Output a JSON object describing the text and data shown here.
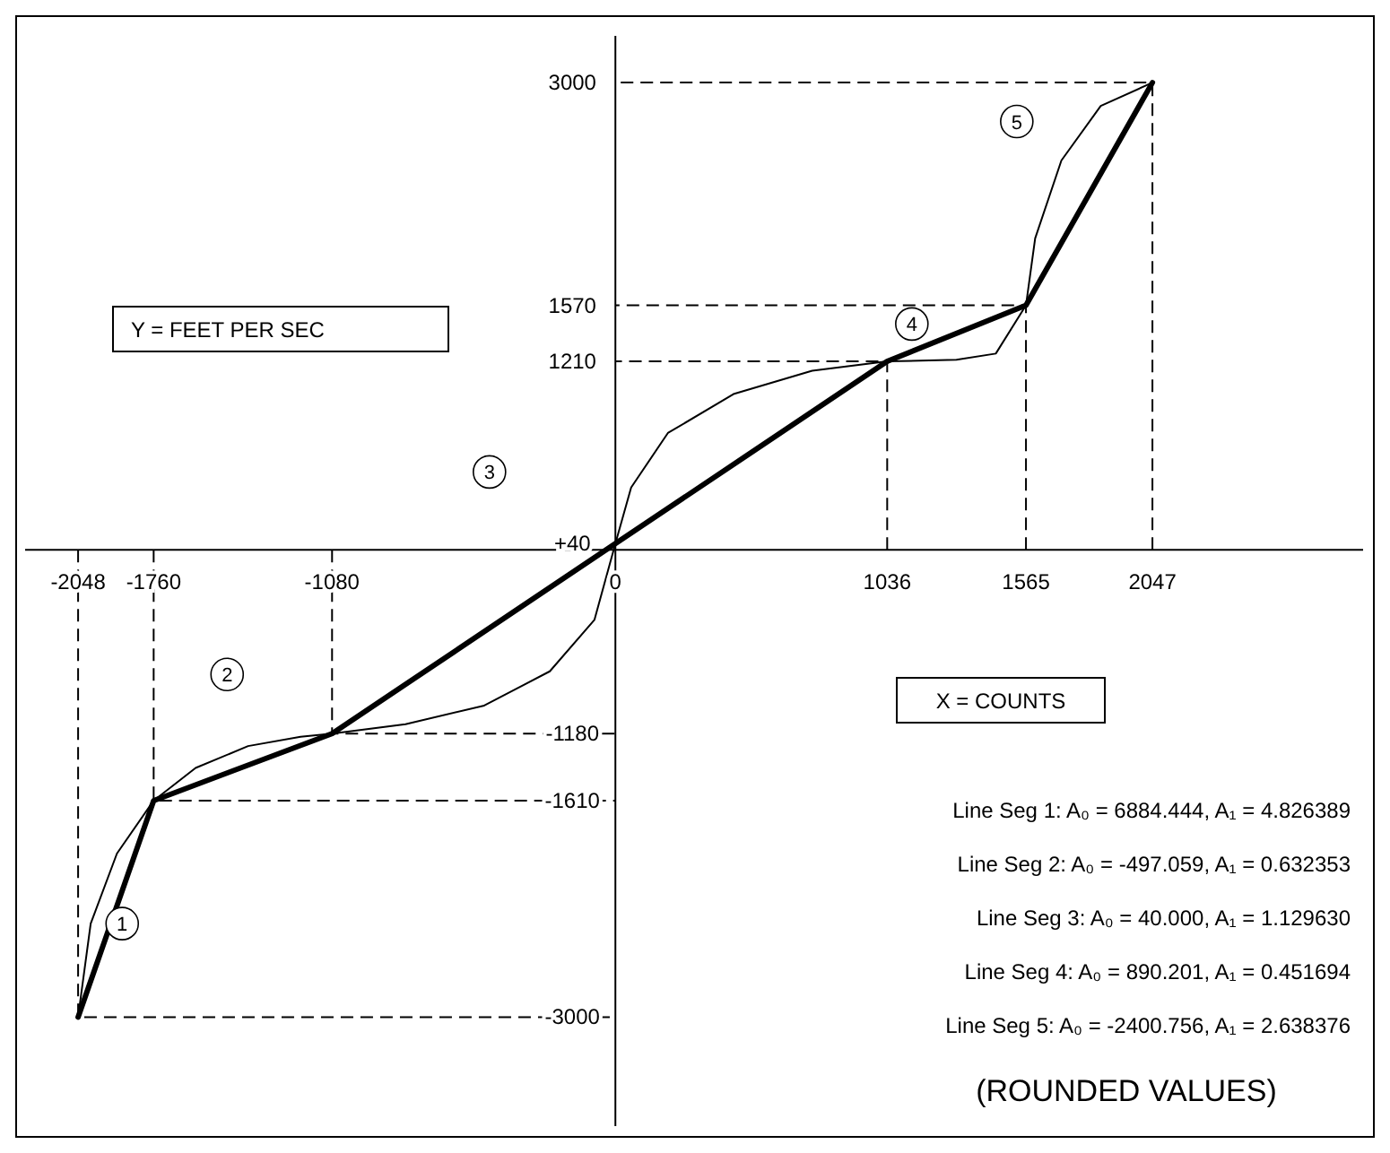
{
  "chart_data": {
    "type": "line",
    "xlabel": "X = COUNTS",
    "ylabel": "Y = FEET PER SEC",
    "xlim": [
      -2250,
      2850
    ],
    "ylim": [
      -3700,
      3300
    ],
    "xticks": [
      -2048,
      -1760,
      -1080,
      0,
      1036,
      1565,
      2047
    ],
    "yticks": [
      -3000,
      -1610,
      -1180,
      {
        "value": 40,
        "label": "+40"
      },
      1210,
      1570,
      3000
    ],
    "series": [
      {
        "color": "#000000",
        "line_style": "solid",
        "x": [
          -2048,
          -1760,
          -1080,
          0,
          1036,
          1565,
          2047
        ],
        "values": [
          -3000,
          -1610,
          -1180,
          40,
          1210,
          1570,
          3000
        ]
      },
      {
        "color": "#000000",
        "line_style": "solid",
        "x": [
          -2048,
          -2000,
          -1900,
          -1760,
          -1600,
          -1400,
          -1200,
          -1080,
          -800,
          -500,
          -250,
          -80,
          0,
          60,
          200,
          450,
          750,
          1036,
          1300,
          1450,
          1565,
          1600,
          1700,
          1850,
          2047
        ],
        "values": [
          -3000,
          -2400,
          -1950,
          -1610,
          -1400,
          -1260,
          -1200,
          -1180,
          -1120,
          -1000,
          -780,
          -450,
          40,
          400,
          750,
          1000,
          1150,
          1210,
          1220,
          1260,
          1570,
          2000,
          2500,
          2850,
          3000
        ]
      },
      {
        "color": "#000000",
        "line_style": "dashed",
        "x": [
          -2048,
          -2048,
          0,
          null,
          -1760,
          -1760,
          0,
          null,
          -1080,
          -1080,
          0,
          null,
          1036,
          1036,
          0,
          null,
          1565,
          1565,
          0,
          null,
          2047,
          2047,
          0
        ],
        "values": [
          0,
          -3000,
          -3000,
          null,
          0,
          -1610,
          -1610,
          null,
          0,
          -1180,
          -1180,
          null,
          0,
          1210,
          1210,
          null,
          0,
          1570,
          1570,
          null,
          0,
          3000,
          3000
        ]
      }
    ],
    "annotations": [
      {
        "text": "1",
        "x": -1880,
        "y": -2400
      },
      {
        "text": "2",
        "x": -1480,
        "y": -800
      },
      {
        "text": "3",
        "x": -480,
        "y": 500
      },
      {
        "text": "4",
        "x": 1130,
        "y": 1450
      },
      {
        "text": "5",
        "x": 1530,
        "y": 2750
      },
      "Line Seg 1: A₀ = 6884.444, A₁ = 4.826389",
      "Line Seg 2: A₀ = -497.059, A₁ = 0.632353",
      "Line Seg 3: A₀ = 40.000, A₁ = 1.129630",
      "Line Seg 4: A₀ = 890.201, A₁ = 0.451694",
      "Line Seg 5: A₀ = -2400.756, A₁ = 2.638376",
      "(ROUNDED VALUES)"
    ],
    "grid": false,
    "marker": "none"
  }
}
